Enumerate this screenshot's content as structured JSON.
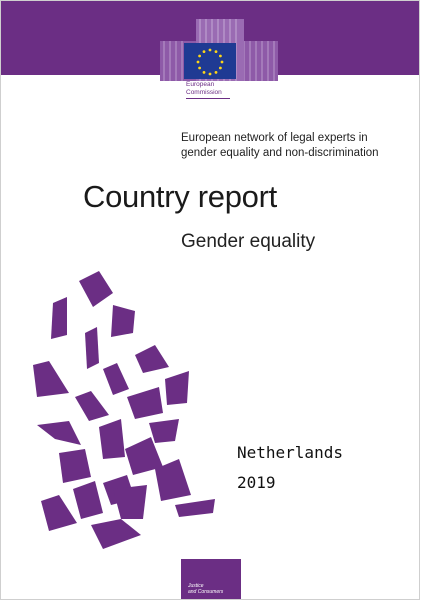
{
  "header": {
    "logo_line1": "European",
    "logo_line2": "Commission",
    "band_color": "#6b2e84",
    "flag_color": "#1f3a93",
    "star_color": "#ffd617"
  },
  "network": {
    "line1": "European network of legal experts in",
    "line2": "gender equality and non-discrimination"
  },
  "report": {
    "title": "Country report",
    "subtitle": "Gender equality"
  },
  "details": {
    "country": "Netherlands",
    "year": "2019"
  },
  "footer": {
    "badge_line1": "Justice",
    "badge_line2": "and Consumers"
  },
  "decoration": {
    "shape_color": "#6b2e84"
  }
}
